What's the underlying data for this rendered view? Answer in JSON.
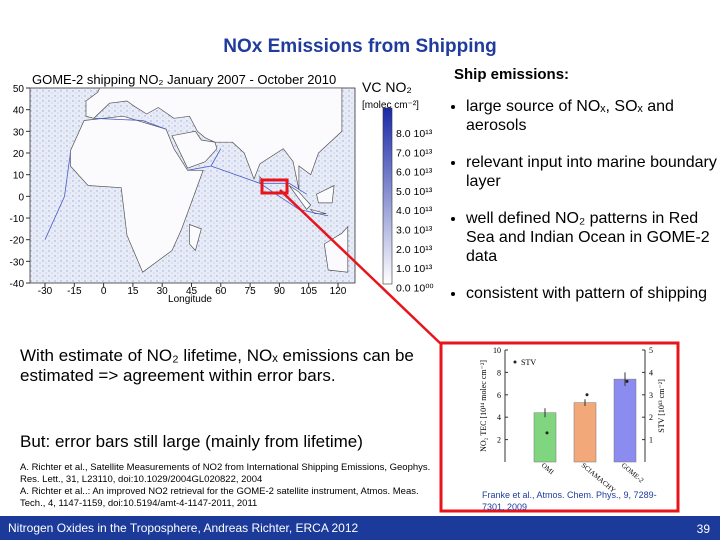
{
  "slide": {
    "title": "NOx Emissions from Shipping",
    "footer": "Nitrogen Oxides in the Troposphere, Andreas Richter, ERCA 2012",
    "page_number": "39"
  },
  "map": {
    "title": "GOME-2 shipping NO₂ January 2007 - October 2010",
    "colorbar_title": "VC NO₂",
    "colorbar_unit": "[molec cm⁻²]",
    "colorbar_labels": [
      "8.0 10¹³",
      "7.0 10¹³",
      "6.0 10¹³",
      "5.0 10¹³",
      "4.0 10¹³",
      "3.0 10¹³",
      "2.0 10¹³",
      "1.0 10¹³",
      "0.0 10⁰⁰"
    ],
    "x_axis_label": "Longitude",
    "xticks": [
      -30,
      -15,
      0,
      15,
      30,
      45,
      60,
      75,
      90,
      105,
      120
    ],
    "yticks": [
      50,
      40,
      30,
      20,
      10,
      0,
      -10,
      -20,
      -30,
      -40
    ]
  },
  "bullets": {
    "heading": "Ship emissions:",
    "items": [
      "large source of NOₓ, SOₓ and aerosols",
      "relevant input into marine boundary layer",
      "well defined NO₂ patterns in Red Sea and Indian Ocean in GOME-2 data",
      "consistent with pattern of shipping"
    ]
  },
  "body": {
    "paragraphs": [
      "With estimate of NO₂ lifetime, NOₓ emissions can be estimated => agreement within error bars.",
      "But: error bars still large (mainly from lifetime)"
    ],
    "references": [
      "A. Richter et al., Satellite Measurements of NO2 from International Shipping Emissions, Geophys. Res. Lett., 31, L23110, doi:10.1029/2004GL020822, 2004",
      "A. Richter et al..: An improved NO2 retrieval for the GOME-2 satellite instrument, Atmos. Meas. Tech., 4, 1147-1159, doi:10.5194/amt-4-1147-2011, 2011"
    ]
  },
  "inset_chart": {
    "type": "bar",
    "categories": [
      "OMI",
      "SCIAMACHY",
      "GOME-2"
    ],
    "colors": [
      "#7fd67f",
      "#f2a878",
      "#8c8cf0"
    ],
    "values": [
      4.4,
      5.3,
      7.4
    ],
    "errors": [
      0.4,
      0.3,
      0.6
    ],
    "ylabel": "NO₂ TEC [10¹⁴ molec cm⁻²]",
    "ylim": [
      0,
      10
    ],
    "yticks": [
      2,
      4,
      6,
      8,
      10
    ],
    "series2": {
      "name": "STV",
      "values": [
        1.3,
        3.0,
        3.6
      ],
      "axis": "y2"
    },
    "y2label": "STV [10¹³ cm⁻²]",
    "y2lim": [
      0,
      5
    ],
    "y2ticks": [
      1,
      2,
      3,
      4,
      5
    ],
    "citation": "Franke et al., Atmos. Chem. Phys., 9, 7289-7301, 2009"
  }
}
